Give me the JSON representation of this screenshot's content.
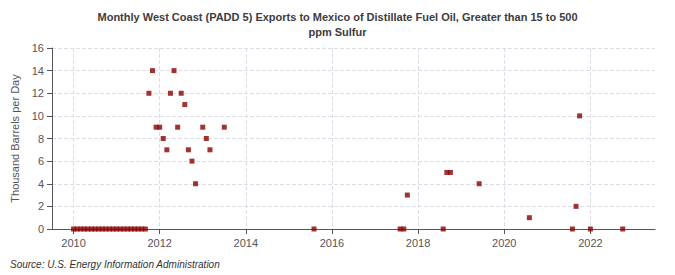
{
  "chart_data": {
    "type": "scatter",
    "title": "Monthly West Coast (PADD 5) Exports to Mexico of Distillate Fuel Oil, Greater than 15 to 500\nppm Sulfur",
    "ylabel": "Thousand Barrels per Day",
    "annotation": "Source: U.S. Energy Information Administration",
    "color": "#8b0000",
    "marker": "square",
    "grid": true,
    "xlim": [
      2009.5,
      2023.5
    ],
    "ylim": [
      0,
      16
    ],
    "xticks": [
      2010,
      2012,
      2014,
      2016,
      2018,
      2020,
      2022
    ],
    "yticks": [
      0,
      2,
      4,
      6,
      8,
      10,
      12,
      14,
      16
    ],
    "x": [
      2010.0,
      2010.083,
      2010.167,
      2010.25,
      2010.333,
      2010.417,
      2010.5,
      2010.583,
      2010.667,
      2010.75,
      2010.833,
      2010.917,
      2011.0,
      2011.083,
      2011.167,
      2011.25,
      2011.333,
      2011.417,
      2011.5,
      2011.583,
      2011.667,
      2011.75,
      2011.833,
      2011.917,
      2012.0,
      2012.083,
      2012.167,
      2012.25,
      2012.333,
      2012.417,
      2012.5,
      2012.583,
      2012.667,
      2012.75,
      2012.833,
      2013.0,
      2013.083,
      2013.167,
      2013.5,
      2015.583,
      2017.583,
      2017.667,
      2017.75,
      2018.583,
      2018.667,
      2018.75,
      2019.417,
      2020.583,
      2021.583,
      2021.667,
      2021.75,
      2022.0,
      2022.75
    ],
    "values": [
      0,
      0,
      0,
      0,
      0,
      0,
      0,
      0,
      0,
      0,
      0,
      0,
      0,
      0,
      0,
      0,
      0,
      0,
      0,
      0,
      0,
      12,
      14,
      9,
      9,
      8,
      7,
      12,
      14,
      9,
      12,
      11,
      7,
      6,
      4,
      9,
      8,
      7,
      9,
      0,
      0,
      0,
      3,
      0,
      5,
      5,
      4,
      1,
      0,
      2,
      10,
      0,
      0
    ]
  }
}
